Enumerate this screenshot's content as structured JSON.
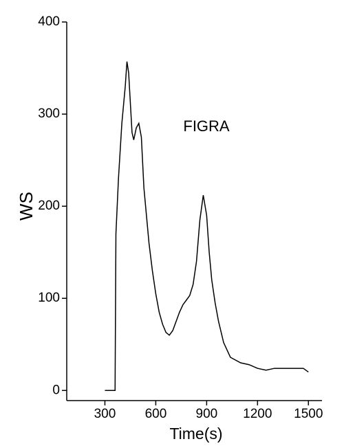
{
  "chart_data": {
    "type": "line",
    "annotation": "FIGRA",
    "xlabel": "Time(s)",
    "ylabel": "WS",
    "x": [
      300,
      360,
      365,
      380,
      400,
      420,
      430,
      440,
      460,
      470,
      485,
      500,
      515,
      530,
      545,
      560,
      580,
      600,
      620,
      640,
      660,
      680,
      700,
      720,
      740,
      760,
      780,
      800,
      820,
      840,
      860,
      880,
      900,
      915,
      930,
      950,
      970,
      1000,
      1040,
      1100,
      1150,
      1200,
      1250,
      1300,
      1400,
      1470,
      1500
    ],
    "series": [
      {
        "name": "FIGRA",
        "color": "#000000",
        "values": [
          0,
          0,
          170,
          230,
          290,
          330,
          357,
          345,
          280,
          272,
          285,
          290,
          275,
          220,
          190,
          160,
          130,
          105,
          85,
          72,
          63,
          60,
          65,
          75,
          85,
          93,
          98,
          103,
          115,
          140,
          185,
          212,
          190,
          150,
          120,
          95,
          75,
          52,
          36,
          30,
          28,
          24,
          22,
          24,
          24,
          24,
          20
        ]
      }
    ],
    "xlim": [
      75,
      1580
    ],
    "ylim": [
      -11,
      400
    ],
    "xticks": [
      300,
      600,
      900,
      1200,
      1500
    ],
    "yticks": [
      0,
      100,
      200,
      300,
      400
    ]
  }
}
